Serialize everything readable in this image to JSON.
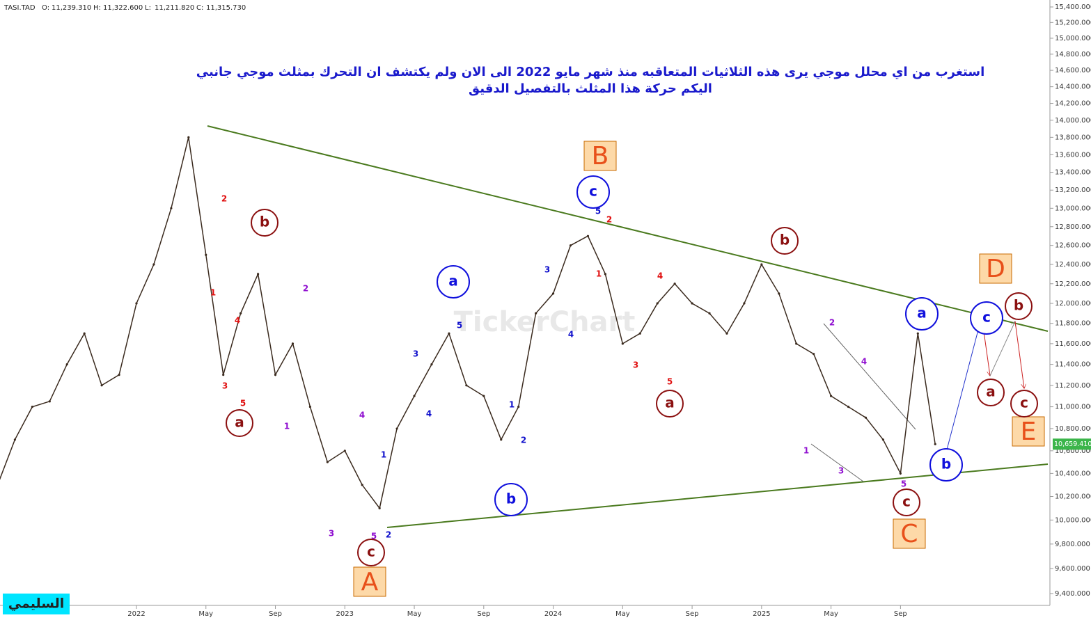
{
  "chart_data": {
    "type": "line",
    "symbol": "TASI.TAD",
    "ohlc": [
      {
        "label": "O:",
        "value": "11,239.310"
      },
      {
        "label": "H:",
        "value": "11,322.600"
      },
      {
        "label": "L:",
        "value": "11,211.820"
      },
      {
        "label": "C:",
        "value": "11,315.730"
      }
    ],
    "title": [
      "استغرب من اي محلل موجي يرى هذه الثلاثيات المتعاقبه منذ شهر مايو 2022 الى الان ولم يكتشف ان التحرك بمثلث موجي جانبي",
      "اليكم حركة هذا المثلث بالتفصيل الدقيق"
    ],
    "author": "السليمي",
    "watermark": "TickerChart",
    "categories": [
      null,
      null,
      null,
      null,
      null,
      null,
      null,
      null,
      "2022",
      null,
      null,
      null,
      "May",
      null,
      null,
      null,
      "Sep",
      null,
      null,
      null,
      "2023",
      null,
      null,
      null,
      "May",
      null,
      null,
      null,
      "Sep",
      null,
      null,
      null,
      "2024",
      null,
      null,
      null,
      "May",
      null,
      null,
      null,
      "Sep",
      null,
      null,
      null,
      "2025",
      null,
      null,
      null,
      "May",
      null,
      null,
      null,
      "Sep",
      null,
      null
    ],
    "series": [
      {
        "name": "TASI.TAD",
        "color": "#3a2a1e",
        "values": [
          10300,
          10700,
          11000,
          11050,
          11400,
          11700,
          11200,
          11300,
          12000,
          12400,
          13000,
          13800,
          12500,
          11300,
          11900,
          12300,
          11300,
          11600,
          11000,
          10500,
          10600,
          10300,
          10100,
          10800,
          11100,
          11400,
          11700,
          11200,
          11100,
          10700,
          11000,
          11900,
          12100,
          12600,
          12700,
          12300,
          11600,
          11700,
          12000,
          12200,
          12000,
          11900,
          11700,
          12000,
          12400,
          12100,
          11600,
          11500,
          11100,
          11000,
          10900,
          10700,
          10400,
          11700,
          10659.41
        ]
      }
    ],
    "last_price": {
      "value": 10659.41,
      "label": "10,659.410"
    },
    "log_scale": true,
    "grid": false,
    "ylim": [
      9400,
      15400
    ],
    "yticks": [
      {
        "value": 9400,
        "label": "9,400.000"
      },
      {
        "value": 9600,
        "label": "9,600.000"
      },
      {
        "value": 9800,
        "label": "9,800.000"
      },
      {
        "value": 10000,
        "label": "10,000.000"
      },
      {
        "value": 10200,
        "label": "10,200.000"
      },
      {
        "value": 10400,
        "label": "10,400.000"
      },
      {
        "value": 10600,
        "label": "10,600.000"
      },
      {
        "value": 10800,
        "label": "10,800.000"
      },
      {
        "value": 11000,
        "label": "11,000.000"
      },
      {
        "value": 11200,
        "label": "11,200.000"
      },
      {
        "value": 11400,
        "label": "11,400.000"
      },
      {
        "value": 11600,
        "label": "11,600.000"
      },
      {
        "value": 11800,
        "label": "11,800.000"
      },
      {
        "value": 12000,
        "label": "12,000.000"
      },
      {
        "value": 12200,
        "label": "12,200.000"
      },
      {
        "value": 12400,
        "label": "12,400.000"
      },
      {
        "value": 12600,
        "label": "12,600.000"
      },
      {
        "value": 12800,
        "label": "12,800.000"
      },
      {
        "value": 13000,
        "label": "13,000.000"
      },
      {
        "value": 13200,
        "label": "13,200.000"
      },
      {
        "value": 13400,
        "label": "13,400.000"
      },
      {
        "value": 13600,
        "label": "13,600.000"
      },
      {
        "value": 13800,
        "label": "13,800.000"
      },
      {
        "value": 14000,
        "label": "14,000.000"
      },
      {
        "value": 14200,
        "label": "14,200.000"
      },
      {
        "value": 14400,
        "label": "14,400.000"
      },
      {
        "value": 14600,
        "label": "14,600.000"
      },
      {
        "value": 14800,
        "label": "14,800.000"
      },
      {
        "value": 15000,
        "label": "15,000.000"
      },
      {
        "value": 15200,
        "label": "15,200.000"
      },
      {
        "value": 15400,
        "label": "15,400.000"
      }
    ],
    "annotations": {
      "boxes": [
        "B",
        "A",
        "C",
        "D",
        "E"
      ],
      "dark_circles": [
        "b",
        "a",
        "c",
        "a",
        "b",
        "c",
        "b",
        "a",
        "c"
      ],
      "blue_circles": [
        "a",
        "c",
        "b",
        "a",
        "c",
        "b"
      ],
      "red_numbers": [
        "2",
        "1",
        "4",
        "3",
        "5",
        "2",
        "1",
        "4",
        "3",
        "5"
      ],
      "purple_numbers": [
        "2",
        "1",
        "4",
        "3",
        "5",
        "2",
        "1",
        "3",
        "4",
        "5"
      ],
      "blue_numbers": [
        "1",
        "2",
        "3",
        "4",
        "5",
        "1",
        "2",
        "3",
        "4",
        "5"
      ]
    }
  }
}
